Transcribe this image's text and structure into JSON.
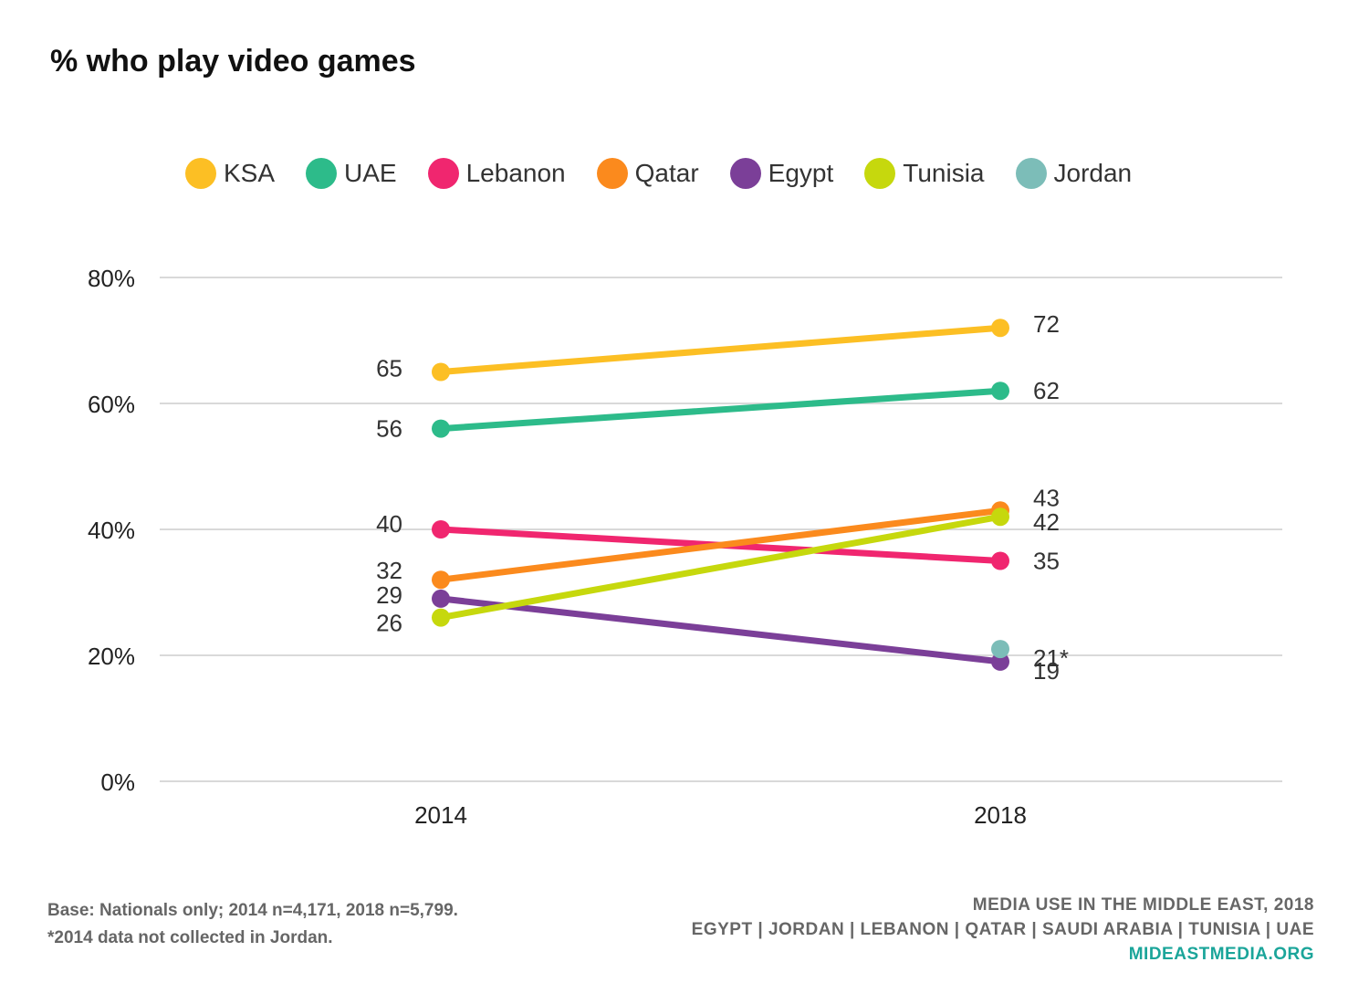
{
  "chart_data": {
    "type": "line",
    "title": "% who play video games",
    "x": [
      "2014",
      "2018"
    ],
    "y_ticks": [
      "0%",
      "20%",
      "40%",
      "60%",
      "80%"
    ],
    "ylim": [
      0,
      80
    ],
    "grid": true,
    "legend_position": "top",
    "series": [
      {
        "name": "KSA",
        "color": "#fcbf24",
        "values": [
          65,
          72
        ],
        "labels": [
          "65",
          "72"
        ]
      },
      {
        "name": "UAE",
        "color": "#2dbb8a",
        "values": [
          56,
          62
        ],
        "labels": [
          "56",
          "62"
        ]
      },
      {
        "name": "Lebanon",
        "color": "#f0266f",
        "values": [
          40,
          35
        ],
        "labels": [
          "40",
          "35"
        ]
      },
      {
        "name": "Qatar",
        "color": "#fb8a1d",
        "values": [
          32,
          43
        ],
        "labels": [
          "32",
          "43"
        ]
      },
      {
        "name": "Egypt",
        "color": "#7b3f98",
        "values": [
          29,
          19
        ],
        "labels": [
          "29",
          "19"
        ]
      },
      {
        "name": "Tunisia",
        "color": "#c6d80d",
        "values": [
          26,
          42
        ],
        "labels": [
          "26",
          "42"
        ]
      },
      {
        "name": "Jordan",
        "color": "#7cbdb8",
        "values": [
          null,
          21
        ],
        "labels": [
          "",
          "21*"
        ]
      }
    ]
  },
  "footer": {
    "base_note": "Base: Nationals only; 2014 n=4,171, 2018 n=5,799.",
    "jordan_note": "*2014 data not collected in Jordan.",
    "report_title": "MEDIA USE IN THE MIDDLE EAST, 2018",
    "countries": "EGYPT | JORDAN | LEBANON | QATAR | SAUDI ARABIA | TUNISIA | UAE",
    "website": "MIDEASTMEDIA.ORG"
  }
}
